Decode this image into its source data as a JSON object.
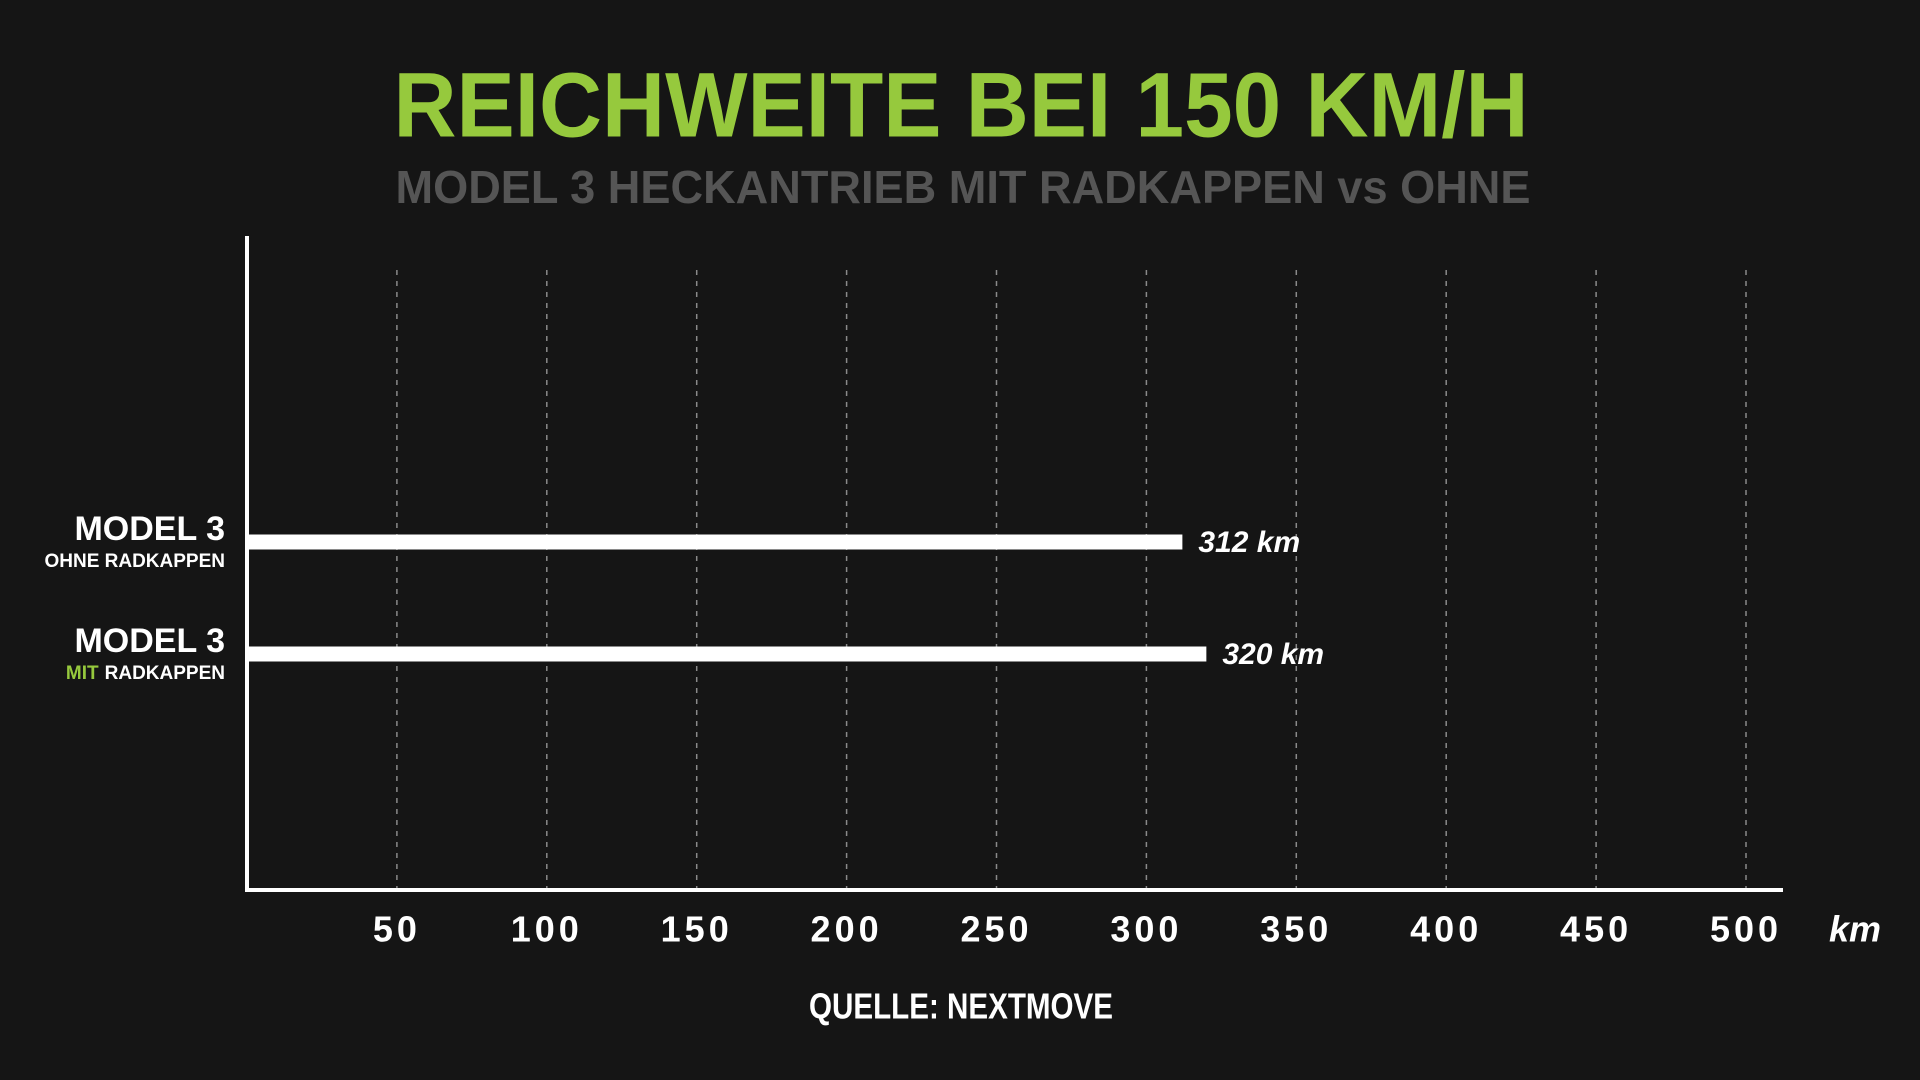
{
  "chart_data": {
    "type": "hbar",
    "title": "REICHWEITE BEI 150 KM/H",
    "subtitle": "MODEL 3 HECKANTRIEB MIT RADKAPPEN vs OHNE",
    "categories": [
      "MODEL 3",
      "MODEL 3"
    ],
    "category_notes": [
      [
        {
          "text": "OHNE RADKAPPEN",
          "color": "#ffffff"
        }
      ],
      [
        {
          "text": "MIT",
          "color": "#96c93d"
        },
        {
          "text": "RADKAPPEN",
          "color": "#ffffff"
        }
      ]
    ],
    "values": [
      312,
      320
    ],
    "value_labels": [
      "312 km",
      "320 km"
    ],
    "color": "#ffffff",
    "xlim": [
      0,
      500
    ],
    "xticks": [
      50,
      100,
      150,
      200,
      250,
      300,
      350,
      400,
      450,
      500
    ],
    "x_unit": "km",
    "grid": true,
    "source": "QUELLE: NEXTMOVE"
  }
}
